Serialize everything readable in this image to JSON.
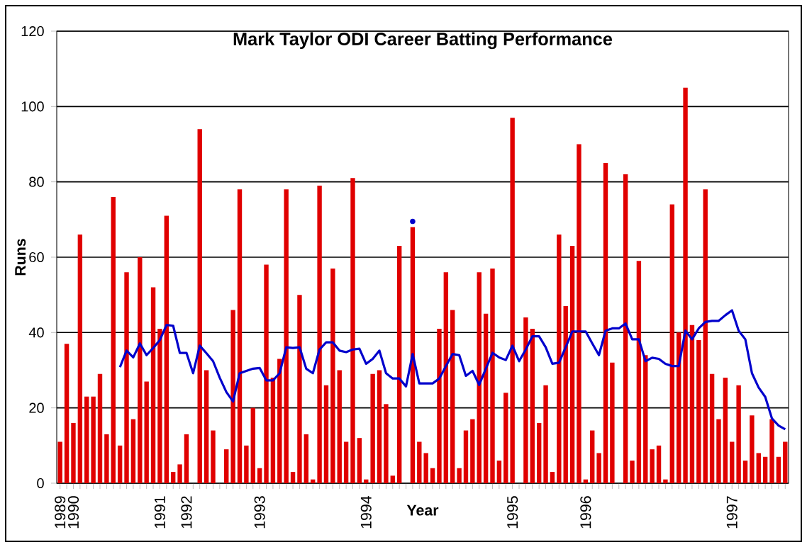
{
  "chart_data": {
    "type": "bar",
    "title": "Mark Taylor ODI Career Batting Performance",
    "xlabel": "Year",
    "ylabel": "Runs",
    "categories": [
      "1989",
      null,
      "1990",
      null,
      null,
      null,
      null,
      null,
      null,
      null,
      null,
      null,
      null,
      null,
      null,
      "1991",
      null,
      null,
      null,
      "1992",
      null,
      null,
      null,
      null,
      null,
      null,
      null,
      null,
      null,
      null,
      "1993",
      null,
      null,
      null,
      null,
      null,
      null,
      null,
      null,
      null,
      null,
      null,
      null,
      null,
      null,
      null,
      "1994",
      null,
      null,
      null,
      null,
      null,
      null,
      null,
      null,
      null,
      null,
      null,
      null,
      null,
      null,
      null,
      null,
      null,
      null,
      null,
      null,
      null,
      "1995",
      null,
      null,
      null,
      null,
      null,
      null,
      null,
      null,
      null,
      null,
      "1996",
      null,
      null,
      null,
      null,
      null,
      null,
      null,
      null,
      null,
      null,
      null,
      null,
      null,
      null,
      null,
      null,
      null,
      null,
      null,
      null,
      null,
      "1997",
      null,
      null,
      null,
      null,
      null,
      null,
      null,
      null
    ],
    "series": [
      {
        "color": "#e00000",
        "values": [
          11,
          37,
          16,
          66,
          23,
          23,
          29,
          13,
          76,
          10,
          56,
          17,
          60,
          27,
          52,
          41,
          71,
          3,
          5,
          13,
          null,
          94,
          30,
          14,
          null,
          9,
          46,
          78,
          10,
          20,
          4,
          58,
          28,
          33,
          78,
          3,
          50,
          13,
          1,
          79,
          26,
          57,
          30,
          11,
          81,
          12,
          1,
          29,
          30,
          21,
          2,
          63,
          null,
          68,
          11,
          8,
          4,
          41,
          56,
          46,
          4,
          14,
          17,
          56,
          45,
          57,
          6,
          24,
          97,
          null,
          44,
          41,
          16,
          26,
          3,
          66,
          47,
          63,
          90,
          1,
          14,
          8,
          85,
          32,
          null,
          82,
          6,
          59,
          34,
          9,
          10,
          1,
          74,
          40,
          105,
          42,
          38,
          78,
          29,
          17,
          28,
          11,
          26,
          6,
          18,
          8,
          7,
          17,
          7,
          11
        ]
      },
      {
        "type": "line",
        "color": "#0000cc",
        "values": [
          null,
          null,
          null,
          null,
          null,
          null,
          null,
          null,
          null,
          30.8,
          35.2,
          33.4,
          37.1,
          34.0,
          35.9,
          38.0,
          42.0,
          41.8,
          34.6,
          34.6,
          29.2,
          36.5,
          34.5,
          32.4,
          28.0,
          24.2,
          21.7,
          29.2,
          29.8,
          30.4,
          30.6,
          27.3,
          27.3,
          29.2,
          36.1,
          35.9,
          36.1,
          30.4,
          29.2,
          35.5,
          37.4,
          37.4,
          35.2,
          34.8,
          35.5,
          35.7,
          31.7,
          33.0,
          35.2,
          29.2,
          27.8,
          27.8,
          25.7,
          34.3,
          26.5,
          26.5,
          26.5,
          27.8,
          31.1,
          34.3,
          34.0,
          28.5,
          29.8,
          26.1,
          30.4,
          34.6,
          33.4,
          32.7,
          36.5,
          32.4,
          35.5,
          39.0,
          39.0,
          36.1,
          31.7,
          32.0,
          36.1,
          40.3,
          40.3,
          40.3,
          37.1,
          34.0,
          40.5,
          41.1,
          41.1,
          42.4,
          38.2,
          38.2,
          32.4,
          33.3,
          33.0,
          31.7,
          31.1,
          31.1,
          40.5,
          38.2,
          41.1,
          42.8,
          43.1,
          43.1,
          44.6,
          45.9,
          40.5,
          38.2,
          29.2,
          25.4,
          22.9,
          17.2,
          15.3,
          14.3
        ]
      },
      {
        "type": "scatter",
        "color": "#0000cc",
        "marker": "circle",
        "values": [
          null,
          null,
          null,
          null,
          null,
          null,
          null,
          null,
          null,
          null,
          null,
          null,
          null,
          null,
          null,
          null,
          null,
          null,
          null,
          null,
          null,
          null,
          null,
          null,
          null,
          null,
          null,
          null,
          null,
          null,
          null,
          null,
          null,
          null,
          null,
          null,
          null,
          null,
          null,
          null,
          null,
          null,
          null,
          null,
          null,
          null,
          null,
          null,
          null,
          null,
          null,
          null,
          null,
          69.5,
          null,
          null,
          null,
          null,
          null,
          null,
          null,
          null,
          null,
          null,
          null,
          null,
          null,
          null,
          null,
          null,
          null,
          null,
          null,
          null,
          null,
          null,
          null,
          null,
          null,
          null,
          null,
          null,
          null,
          null,
          null,
          null,
          null,
          null,
          null,
          null,
          null,
          null,
          null,
          null,
          null,
          null,
          null,
          null,
          null,
          null,
          null,
          null,
          null,
          null,
          null,
          null,
          null,
          null,
          null,
          null
        ]
      }
    ],
    "ylim": [
      0,
      120
    ],
    "yticks": [
      0,
      20,
      40,
      60,
      80,
      100,
      120
    ],
    "grid": "y"
  }
}
